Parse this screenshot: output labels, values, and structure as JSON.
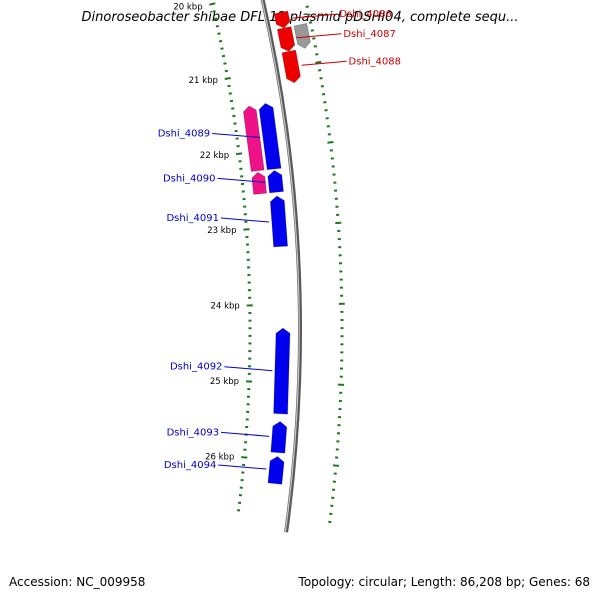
{
  "title": "Dinoroseobacter shibae DFL 12 plasmid pDSHI04, complete sequ...",
  "footer": {
    "accession": "Accession: NC_009958",
    "summary": "Topology: circular; Length: 86,208 bp; Genes: 68"
  },
  "colors": {
    "backbone": "#8c8c8c",
    "tick": "#1a7a1a",
    "forward_gene": "#0000ee",
    "reverse_gene": "#ee0000",
    "pseudo_gene": "#ee1188",
    "gray_gene": "#999999",
    "forward_label": "#0000cc",
    "reverse_label": "#cc0000"
  },
  "scale": {
    "unit": "kbp",
    "ticks": [
      {
        "kbp": 20,
        "label": "20 kbp"
      },
      {
        "kbp": 21,
        "label": "21 kbp"
      },
      {
        "kbp": 22,
        "label": "22 kbp"
      },
      {
        "kbp": 23,
        "label": "23 kbp"
      },
      {
        "kbp": 24,
        "label": "24 kbp"
      },
      {
        "kbp": 25,
        "label": "25 kbp"
      },
      {
        "kbp": 26,
        "label": "26 kbp"
      }
    ]
  },
  "genes": [
    {
      "name": "Dshi_4086",
      "strand": "reverse",
      "start": 20.3,
      "end": 20.5,
      "color": "reverse"
    },
    {
      "name": "Dshi_4087",
      "strand": "reverse",
      "start": 20.5,
      "end": 20.8,
      "color": "reverse"
    },
    {
      "name": "Dshi_4088",
      "strand": "reverse",
      "start": 20.8,
      "end": 21.2,
      "color": "reverse"
    },
    {
      "name": "Dshi_4089",
      "strand": "forward",
      "start": 21.4,
      "end": 22.25,
      "color": "forward"
    },
    {
      "name": "Dshi_4090",
      "strand": "forward",
      "start": 22.27,
      "end": 22.55,
      "color": "forward"
    },
    {
      "name": "Dshi_4091",
      "strand": "forward",
      "start": 22.6,
      "end": 23.25,
      "color": "forward"
    },
    {
      "name": "Dshi_4092",
      "strand": "forward",
      "start": 24.3,
      "end": 25.4,
      "color": "forward"
    },
    {
      "name": "Dshi_4093",
      "strand": "forward",
      "start": 25.5,
      "end": 25.9,
      "color": "forward"
    },
    {
      "name": "Dshi_4094",
      "strand": "forward",
      "start": 25.95,
      "end": 26.3,
      "color": "forward"
    }
  ],
  "unlabeled_features": [
    {
      "name": "unlabeled-reverse-gene",
      "track": "reverse-inner",
      "start": 19.7,
      "end": 20.1,
      "color": "reverse"
    },
    {
      "name": "unlabeled-gray-gene",
      "track": "reverse-outer",
      "start": 19.7,
      "end": 20.1,
      "color": "gray_gene"
    },
    {
      "name": "gray-feature",
      "track": "reverse-outer",
      "start": 20.5,
      "end": 20.8,
      "color": "gray_gene"
    },
    {
      "name": "pink-feature",
      "track": "forward-outer",
      "start": 21.4,
      "end": 22.25,
      "color": "pseudo_gene"
    },
    {
      "name": "pink-feature",
      "track": "forward-outer",
      "start": 22.27,
      "end": 22.55,
      "color": "pseudo_gene"
    },
    {
      "name": "pink-feature",
      "track": "reverse-outer",
      "start": 19.7,
      "end": 19.8,
      "color": "pseudo_gene"
    }
  ]
}
